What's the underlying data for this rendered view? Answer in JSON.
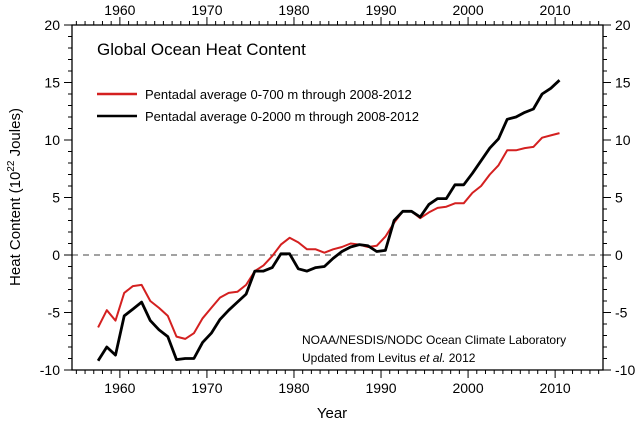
{
  "chart_data": {
    "type": "line",
    "title": "Global Ocean Heat Content",
    "xlabel": "Year",
    "ylabel_main": "Heat Content (10",
    "ylabel_sup": "22",
    "ylabel_end": " Joules)",
    "xlim": [
      1954.5,
      2015.5
    ],
    "ylim": [
      -10,
      20
    ],
    "xticks": [
      1960,
      1970,
      1980,
      1990,
      2000,
      2010
    ],
    "yticks": [
      -10,
      -5,
      0,
      5,
      10,
      15,
      20
    ],
    "zero_line": "dashed",
    "grid": false,
    "legend_placement": "top-left",
    "annotation_line1": "NOAA/NESDIS/NODC Ocean Climate Laboratory",
    "annotation_line2_pre": "Updated from Levitus ",
    "annotation_line2_ital": "et al.",
    "annotation_line2_post": " 2012",
    "x": [
      1957.5,
      1958.5,
      1959.5,
      1960.5,
      1961.5,
      1962.5,
      1963.5,
      1964.5,
      1965.5,
      1966.5,
      1967.5,
      1968.5,
      1969.5,
      1970.5,
      1971.5,
      1972.5,
      1973.5,
      1974.5,
      1975.5,
      1976.5,
      1977.5,
      1978.5,
      1979.5,
      1980.5,
      1981.5,
      1982.5,
      1983.5,
      1984.5,
      1985.5,
      1986.5,
      1987.5,
      1988.5,
      1989.5,
      1990.5,
      1991.5,
      1992.5,
      1993.5,
      1994.5,
      1995.5,
      1996.5,
      1997.5,
      1998.5,
      1999.5,
      2000.5,
      2001.5,
      2002.5,
      2003.5,
      2004.5,
      2005.5,
      2006.5,
      2007.5,
      2008.5,
      2009.5,
      2010.5
    ],
    "series": [
      {
        "name": "Pentadal average 0-700 m through 2008-2012",
        "color": "#d42020",
        "values": [
          -6.3,
          -4.8,
          -5.7,
          -3.3,
          -2.7,
          -2.6,
          -4.0,
          -4.6,
          -5.3,
          -7.1,
          -7.3,
          -6.8,
          -5.5,
          -4.6,
          -3.7,
          -3.3,
          -3.2,
          -2.6,
          -1.4,
          -0.9,
          -0.1,
          0.9,
          1.5,
          1.1,
          0.5,
          0.5,
          0.2,
          0.5,
          0.7,
          1.0,
          0.9,
          0.7,
          0.8,
          1.6,
          2.8,
          3.8,
          3.8,
          3.2,
          3.7,
          4.1,
          4.2,
          4.5,
          4.5,
          5.4,
          6.0,
          7.0,
          7.8,
          9.1,
          9.1,
          9.3,
          9.4,
          10.2,
          10.4,
          10.6
        ]
      },
      {
        "name": "Pentadal average 0-2000 m through 2008-2012",
        "color": "#000000",
        "values": [
          -9.2,
          -8.0,
          -8.7,
          -5.3,
          -4.7,
          -4.1,
          -5.7,
          -6.5,
          -7.1,
          -9.1,
          -9.0,
          -9.0,
          -7.6,
          -6.8,
          -5.6,
          -4.8,
          -4.1,
          -3.4,
          -1.4,
          -1.4,
          -1.1,
          0.1,
          0.1,
          -1.2,
          -1.4,
          -1.1,
          -1.0,
          -0.3,
          0.3,
          0.7,
          0.9,
          0.8,
          0.3,
          0.4,
          3.0,
          3.8,
          3.8,
          3.3,
          4.4,
          4.9,
          4.9,
          6.1,
          6.1,
          7.1,
          8.2,
          9.3,
          10.1,
          11.8,
          12.0,
          12.4,
          12.7,
          14.0,
          14.5,
          15.2
        ]
      }
    ]
  }
}
